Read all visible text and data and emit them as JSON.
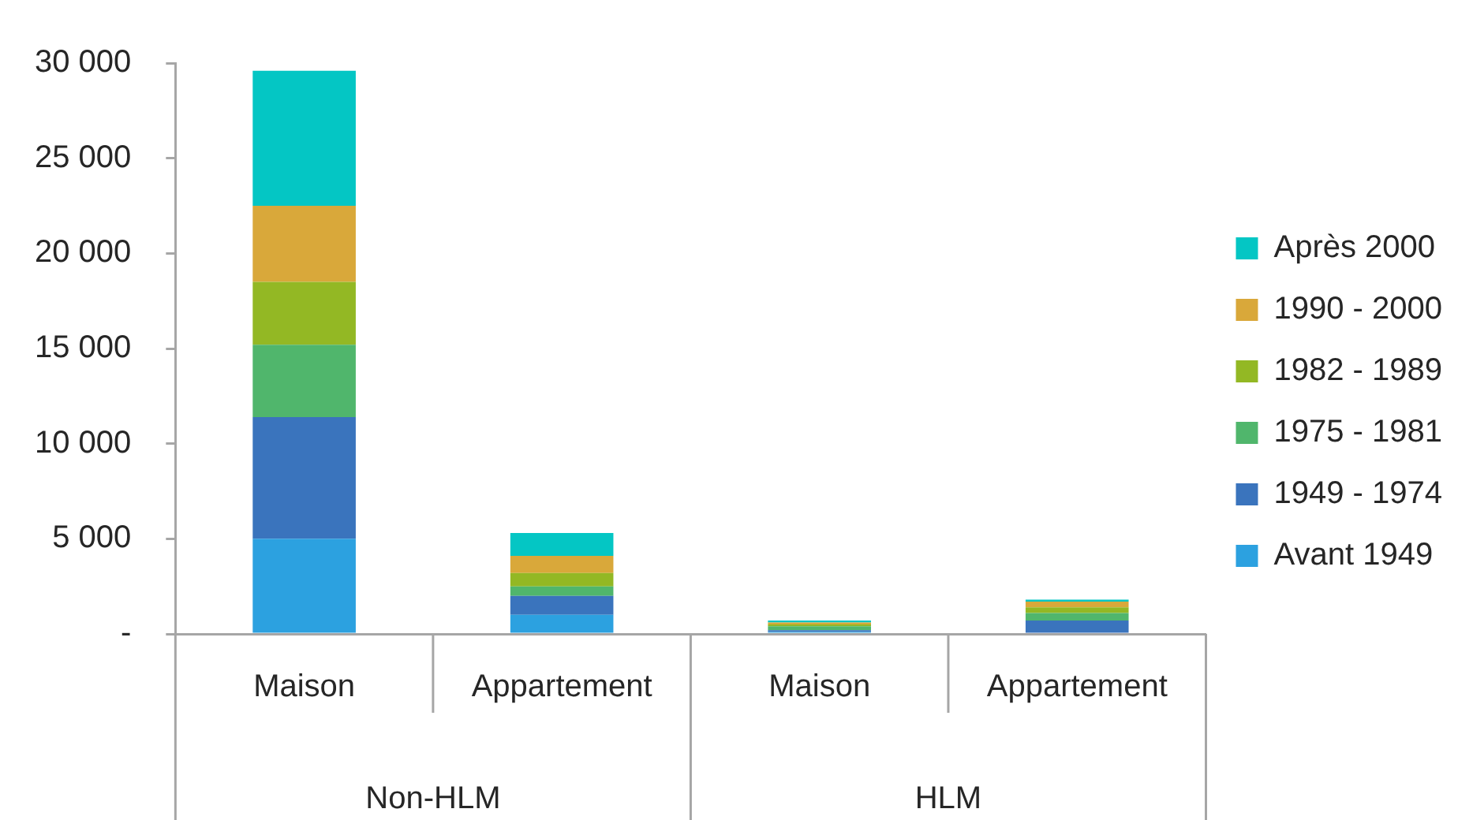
{
  "chart_data": {
    "type": "bar",
    "stacked": true,
    "categories": [
      "Maison",
      "Appartement",
      "Maison",
      "Appartement"
    ],
    "series": [
      {
        "name": "Avant 1949",
        "color": "#2ca1e0",
        "values": [
          5000,
          1000,
          100,
          null
        ]
      },
      {
        "name": "1949 - 1974",
        "color": "#3a74bd",
        "values": [
          6400,
          1000,
          100,
          700
        ]
      },
      {
        "name": "1975 - 1981",
        "color": "#50b66c",
        "values": [
          3800,
          500,
          200,
          400
        ]
      },
      {
        "name": "1982 - 1989",
        "color": "#93b824",
        "values": [
          3300,
          700,
          100,
          300
        ]
      },
      {
        "name": "1990 - 2000",
        "color": "#d9a83a",
        "values": [
          4000,
          900,
          100,
          300
        ]
      },
      {
        "name": "Après 2000",
        "color": "#04c6c4",
        "values": [
          7100,
          1200,
          100,
          100
        ]
      }
    ],
    "ylim": [
      0,
      30000
    ],
    "yticks": [
      {
        "value": 0,
        "label": "-"
      },
      {
        "value": 5000,
        "label": "5 000"
      },
      {
        "value": 10000,
        "label": "10 000"
      },
      {
        "value": 15000,
        "label": "15 000"
      },
      {
        "value": 20000,
        "label": "20 000"
      },
      {
        "value": 25000,
        "label": "25 000"
      },
      {
        "value": 30000,
        "label": "30 000"
      }
    ],
    "annotations": [
      "Non-HLM",
      "HLM"
    ],
    "grid": false,
    "legend": "right"
  }
}
